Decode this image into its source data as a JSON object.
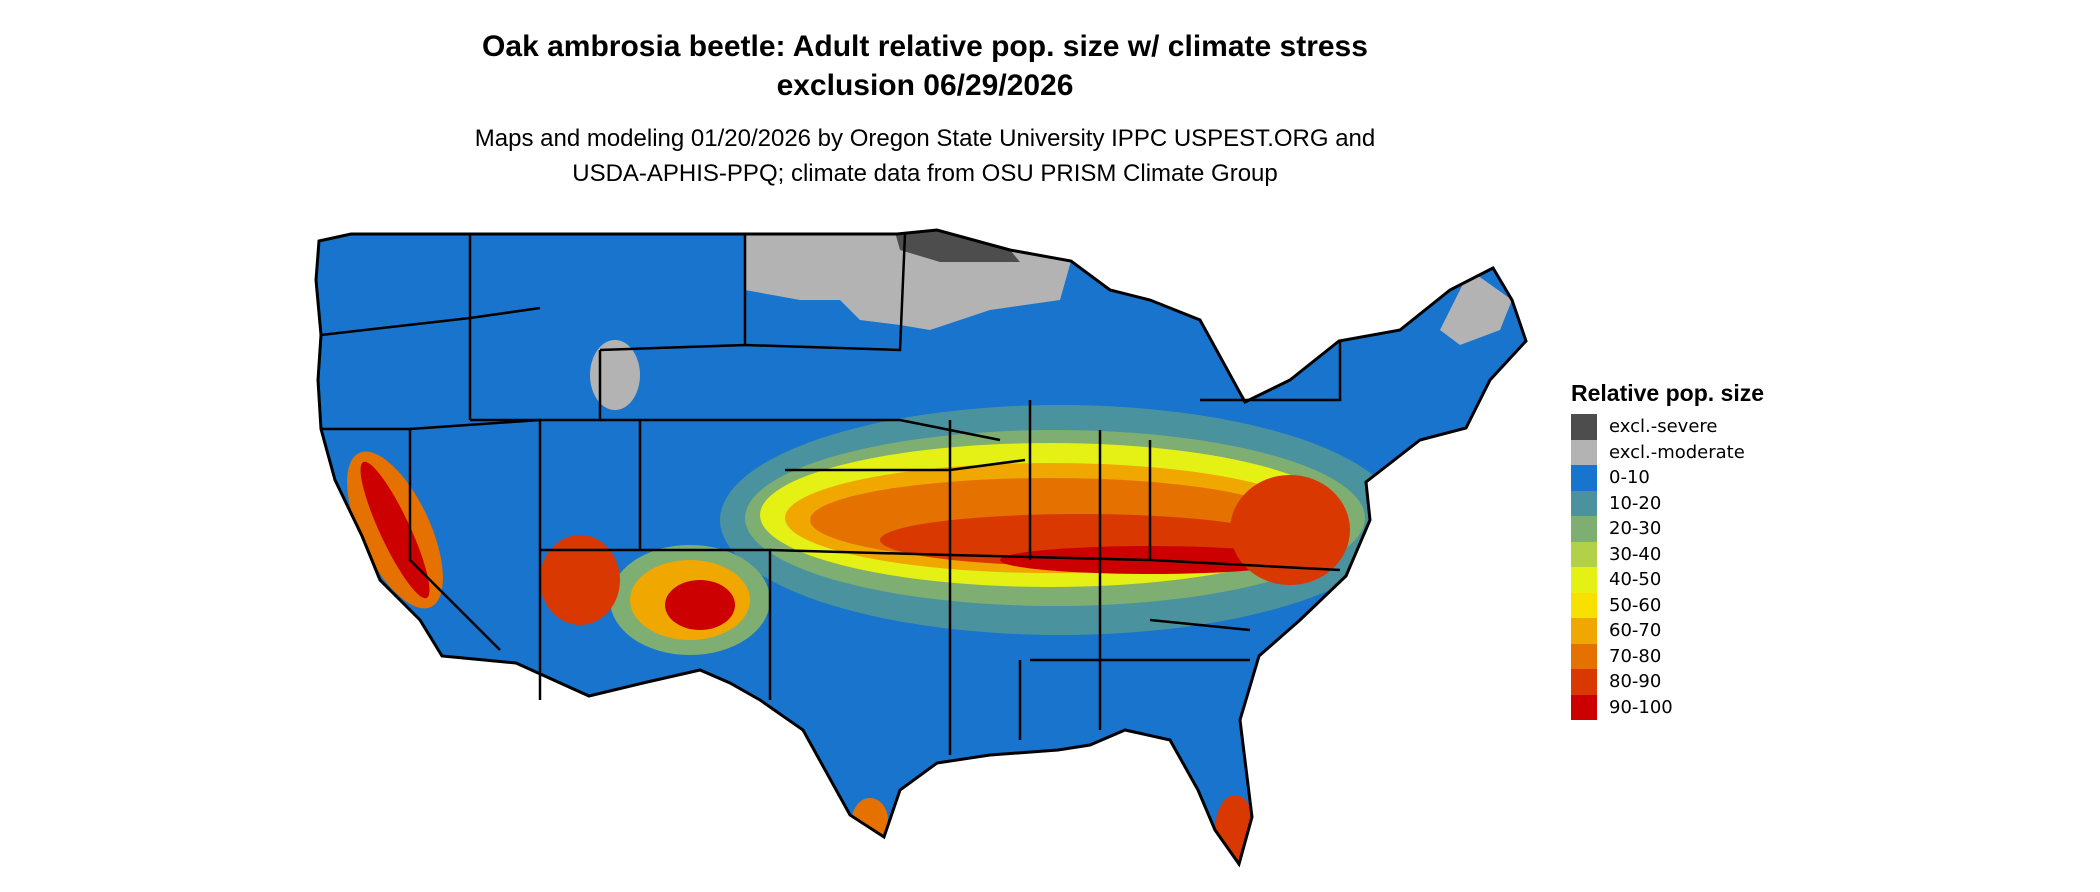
{
  "title": {
    "line1": "Oak ambrosia beetle: Adult relative pop. size w/ climate stress",
    "line2": "exclusion 06/29/2026"
  },
  "subtitle": {
    "line1": "Maps and modeling 01/20/2026 by Oregon State University IPPC USPEST.ORG and",
    "line2": "USDA-APHIS-PPQ; climate data from OSU PRISM Climate Group"
  },
  "legend": {
    "title": "Relative pop. size",
    "items": [
      {
        "label": "excl.-severe",
        "color": "#4d4d4d"
      },
      {
        "label": "excl.-moderate",
        "color": "#b3b3b3"
      },
      {
        "label": "0-10",
        "color": "#1874cd"
      },
      {
        "label": "10-20",
        "color": "#4a929e"
      },
      {
        "label": "20-30",
        "color": "#7fae72"
      },
      {
        "label": "30-40",
        "color": "#b2d148"
      },
      {
        "label": "40-50",
        "color": "#e5f014"
      },
      {
        "label": "50-60",
        "color": "#f8e000"
      },
      {
        "label": "60-70",
        "color": "#f0a800"
      },
      {
        "label": "70-80",
        "color": "#e57200"
      },
      {
        "label": "80-90",
        "color": "#d93800"
      },
      {
        "label": "90-100",
        "color": "#cc0000"
      }
    ]
  },
  "map": {
    "region": "Contiguous United States",
    "hotspots": [
      "Central Plains to Mid-Atlantic band",
      "Southwest mountains",
      "California foothills",
      "South Florida",
      "South Texas"
    ]
  }
}
